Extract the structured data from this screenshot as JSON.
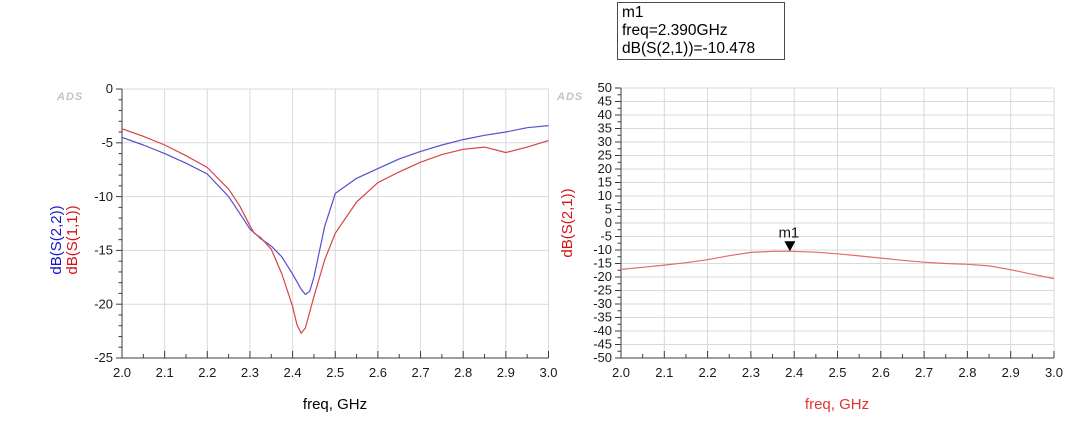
{
  "watermark": "ADS",
  "marker_readout": {
    "lines": [
      "m1",
      "freq=2.390GHz",
      "dB(S(2,1))=-10.478"
    ]
  },
  "chart_data": [
    {
      "type": "line",
      "title": "",
      "xlabel": "freq, GHz",
      "xlabel_color": "#000000",
      "ylabel_parts": [
        {
          "text": "dB(S(2,2))",
          "color": "#1515cc"
        },
        {
          "text": "dB(S(1,1))",
          "color": "#d41414"
        }
      ],
      "xlim": [
        2.0,
        3.0
      ],
      "ylim": [
        -25,
        0
      ],
      "x_major": 0.1,
      "x_minor": 0.05,
      "y_major": 5,
      "y_minor": 1,
      "grid": true,
      "legend_position": "none",
      "x_tick_labels": [
        "2.0",
        "2.1",
        "2.2",
        "2.3",
        "2.4",
        "2.5",
        "2.6",
        "2.7",
        "2.8",
        "2.9",
        "3.0"
      ],
      "y_tick_labels": [
        "0",
        "-5",
        "-10",
        "-15",
        "-20",
        "-25"
      ],
      "series": [
        {
          "name": "dB(S(2,2))",
          "color": "#5151cc",
          "x": [
            2.0,
            2.05,
            2.1,
            2.15,
            2.2,
            2.25,
            2.275,
            2.3,
            2.325,
            2.35,
            2.375,
            2.4,
            2.42,
            2.43,
            2.44,
            2.45,
            2.475,
            2.5,
            2.55,
            2.6,
            2.65,
            2.7,
            2.75,
            2.8,
            2.85,
            2.9,
            2.95,
            3.0
          ],
          "y": [
            -4.5,
            -5.2,
            -6.0,
            -6.9,
            -7.9,
            -10.0,
            -11.5,
            -13.0,
            -13.9,
            -14.6,
            -15.6,
            -17.2,
            -18.6,
            -19.1,
            -18.8,
            -17.5,
            -12.8,
            -9.7,
            -8.3,
            -7.4,
            -6.5,
            -5.8,
            -5.2,
            -4.7,
            -4.3,
            -4.0,
            -3.6,
            -3.4
          ]
        },
        {
          "name": "dB(S(1,1))",
          "color": "#d84343",
          "x": [
            2.0,
            2.05,
            2.1,
            2.15,
            2.2,
            2.25,
            2.275,
            2.3,
            2.31,
            2.325,
            2.35,
            2.375,
            2.4,
            2.41,
            2.42,
            2.43,
            2.45,
            2.475,
            2.5,
            2.55,
            2.6,
            2.65,
            2.7,
            2.75,
            2.8,
            2.85,
            2.9,
            2.95,
            3.0
          ],
          "y": [
            -3.7,
            -4.4,
            -5.2,
            -6.2,
            -7.3,
            -9.3,
            -10.8,
            -12.7,
            -13.4,
            -13.8,
            -14.9,
            -17.2,
            -20.2,
            -21.9,
            -22.7,
            -22.2,
            -19.3,
            -15.9,
            -13.4,
            -10.5,
            -8.7,
            -7.7,
            -6.8,
            -6.1,
            -5.6,
            -5.4,
            -5.9,
            -5.4,
            -4.8
          ]
        }
      ]
    },
    {
      "type": "line",
      "title": "",
      "xlabel": "freq, GHz",
      "xlabel_color": "#e03333",
      "ylabel_parts": [
        {
          "text": "dB(S(2,1))",
          "color": "#d41414"
        }
      ],
      "xlim": [
        2.0,
        3.0
      ],
      "ylim": [
        -50,
        50
      ],
      "x_major": 0.1,
      "x_minor": 0.05,
      "y_major": 5,
      "y_minor": 2.5,
      "grid": true,
      "legend_position": "none",
      "x_tick_labels": [
        "2.0",
        "2.1",
        "2.2",
        "2.3",
        "2.4",
        "2.5",
        "2.6",
        "2.7",
        "2.8",
        "2.9",
        "3.0"
      ],
      "y_tick_labels": [
        "50",
        "45",
        "40",
        "35",
        "30",
        "25",
        "20",
        "15",
        "10",
        "5",
        "0",
        "-5",
        "-10",
        "-15",
        "-20",
        "-25",
        "-30",
        "-35",
        "-40",
        "-45",
        "-50"
      ],
      "series": [
        {
          "name": "dB(S(2,1))",
          "color": "#e26b6b",
          "x": [
            2.0,
            2.05,
            2.1,
            2.15,
            2.2,
            2.25,
            2.3,
            2.35,
            2.39,
            2.45,
            2.5,
            2.55,
            2.6,
            2.65,
            2.7,
            2.75,
            2.8,
            2.85,
            2.9,
            2.95,
            3.0
          ],
          "y": [
            -17.2,
            -16.4,
            -15.6,
            -14.7,
            -13.6,
            -12.1,
            -10.9,
            -10.5,
            -10.478,
            -10.8,
            -11.4,
            -12.2,
            -13.0,
            -13.8,
            -14.5,
            -15.0,
            -15.3,
            -15.9,
            -17.3,
            -19.0,
            -20.6
          ]
        }
      ],
      "marker": {
        "label": "m1",
        "x": 2.39,
        "y": -10.478,
        "color": "#000000"
      }
    }
  ]
}
